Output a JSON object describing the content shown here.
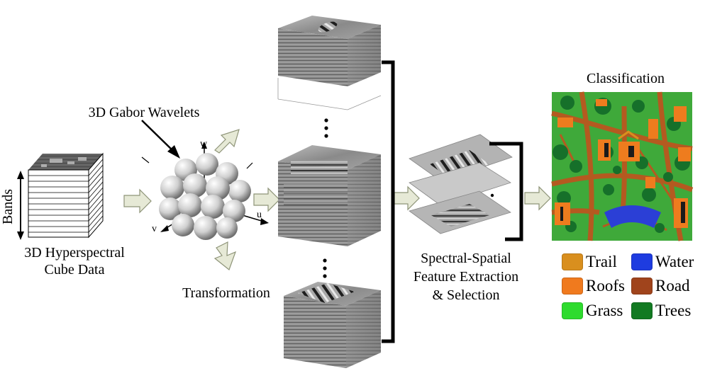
{
  "labels": {
    "cube_caption_line1": "3D Hyperspectral",
    "cube_caption_line2": "Cube Data",
    "bands": "Bands",
    "gabor": "3D Gabor Wavelets",
    "transformation": "Transformation",
    "feature_line1": "Spectral-Spatial",
    "feature_line2": "Feature Extraction",
    "feature_line3": "& Selection",
    "classification": "Classification",
    "axis_w": "w",
    "axis_u": "u",
    "axis_v": "v"
  },
  "legend": [
    {
      "label": "Trail",
      "color": "#D98F1E"
    },
    {
      "label": "Water",
      "color": "#1E3CE0"
    },
    {
      "label": "Roofs",
      "color": "#F07A1E"
    },
    {
      "label": "Road",
      "color": "#A0441C"
    },
    {
      "label": "Grass",
      "color": "#2EDB2E"
    },
    {
      "label": "Trees",
      "color": "#127A22"
    }
  ],
  "colors": {
    "arrow_fill": "#E6E9D6",
    "arrow_stroke": "#8E9478",
    "map_grass": "#3FA93A",
    "map_trees": "#16702A",
    "map_road": "#B45A20",
    "map_roof": "#EE7C1E",
    "map_water": "#2B3FD6"
  }
}
